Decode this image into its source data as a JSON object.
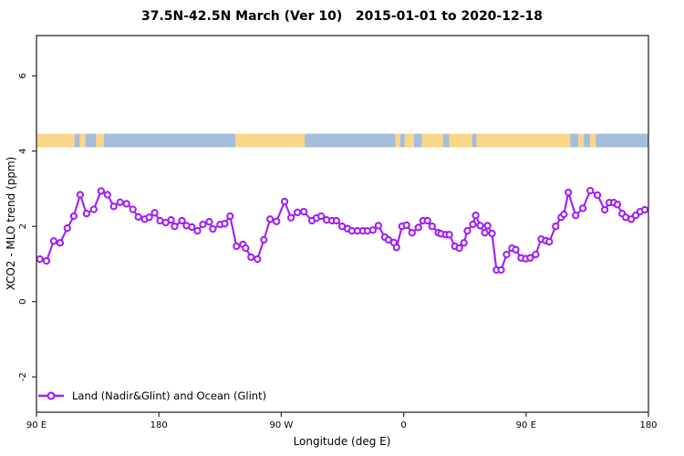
{
  "title": "37.5N-42.5N March (Ver 10)   2015-01-01 to 2020-12-18",
  "colors": {
    "line": "#A020F0",
    "marker_fill": "#ffffff",
    "land_band": "#FBD687",
    "ocean_band": "#A4BDDB",
    "axis": "#2b2b2b",
    "text": "#000000"
  },
  "legend": {
    "label": "Land (Nadir&Glint) and Ocean (Glint)"
  },
  "chart_data": {
    "type": "line",
    "title": "37.5N-42.5N March (Ver 10)   2015-01-01 to 2020-12-18",
    "xlabel": "Longitude (deg E)",
    "ylabel": "XCO2 - MLO trend (ppm)",
    "xlim": [
      90,
      540
    ],
    "ylim": [
      -2.94,
      7.07
    ],
    "grid": false,
    "legend_position": "bottom-left-inside",
    "x_ticks": [
      {
        "v": 90,
        "label": "90 E"
      },
      {
        "v": 180,
        "label": "180"
      },
      {
        "v": 270,
        "label": "90 W"
      },
      {
        "v": 360,
        "label": "0"
      },
      {
        "v": 450,
        "label": "90 E"
      },
      {
        "v": 540,
        "label": "180"
      }
    ],
    "y_ticks": [
      {
        "v": -2,
        "label": "-2"
      },
      {
        "v": 0,
        "label": "0"
      },
      {
        "v": 2,
        "label": "2"
      },
      {
        "v": 4,
        "label": "4"
      },
      {
        "v": 6,
        "label": "6"
      }
    ],
    "map_band": {
      "description": "land/ocean strip along longitude",
      "ppm_top": 4.46,
      "ppm_bottom": 4.1,
      "segments": [
        {
          "from": 90,
          "to": 118,
          "surface": "land"
        },
        {
          "from": 118,
          "to": 122,
          "surface": "ocean"
        },
        {
          "from": 122,
          "to": 126,
          "surface": "land"
        },
        {
          "from": 126,
          "to": 134,
          "surface": "ocean"
        },
        {
          "from": 134,
          "to": 139.5,
          "surface": "land"
        },
        {
          "from": 139.5,
          "to": 236.4,
          "surface": "ocean"
        },
        {
          "from": 236.4,
          "to": 287.2,
          "surface": "land"
        },
        {
          "from": 287.2,
          "to": 354.1,
          "surface": "ocean"
        },
        {
          "from": 354.1,
          "to": 357.4,
          "surface": "land"
        },
        {
          "from": 357.4,
          "to": 360.8,
          "surface": "ocean"
        },
        {
          "from": 360.8,
          "to": 367.5,
          "surface": "land"
        },
        {
          "from": 367.5,
          "to": 373.5,
          "surface": "ocean"
        },
        {
          "from": 373.5,
          "to": 388.9,
          "surface": "land"
        },
        {
          "from": 388.9,
          "to": 393.6,
          "surface": "ocean"
        },
        {
          "from": 393.6,
          "to": 410.3,
          "surface": "land"
        },
        {
          "from": 410.3,
          "to": 413.6,
          "surface": "ocean"
        },
        {
          "from": 413.6,
          "to": 482.5,
          "surface": "land"
        },
        {
          "from": 482.5,
          "to": 488.5,
          "surface": "ocean"
        },
        {
          "from": 488.5,
          "to": 492.5,
          "surface": "land"
        },
        {
          "from": 492.5,
          "to": 497.2,
          "surface": "ocean"
        },
        {
          "from": 497.2,
          "to": 501.2,
          "surface": "land"
        },
        {
          "from": 501.2,
          "to": 540,
          "surface": "ocean"
        }
      ]
    },
    "series": [
      {
        "name": "Land (Nadir&Glint) and Ocean (Glint)",
        "marker": "open-circle",
        "color": "#A020F0",
        "points": [
          [
            92.5,
            1.13
          ],
          [
            97.4,
            1.08
          ],
          [
            102.7,
            1.61
          ],
          [
            107.4,
            1.56
          ],
          [
            112.7,
            1.95
          ],
          [
            117.4,
            2.27
          ],
          [
            122.1,
            2.84
          ],
          [
            126.8,
            2.34
          ],
          [
            132.1,
            2.45
          ],
          [
            137.5,
            2.94
          ],
          [
            142.2,
            2.84
          ],
          [
            146.8,
            2.53
          ],
          [
            151.5,
            2.64
          ],
          [
            156.2,
            2.6
          ],
          [
            160.9,
            2.45
          ],
          [
            164.9,
            2.25
          ],
          [
            169.6,
            2.19
          ],
          [
            172.9,
            2.24
          ],
          [
            176.9,
            2.36
          ],
          [
            180.9,
            2.15
          ],
          [
            185.0,
            2.1
          ],
          [
            189.0,
            2.17
          ],
          [
            191.6,
            2.0
          ],
          [
            197.0,
            2.15
          ],
          [
            200.3,
            2.02
          ],
          [
            204.3,
            1.98
          ],
          [
            208.4,
            1.88
          ],
          [
            212.4,
            2.05
          ],
          [
            217.1,
            2.12
          ],
          [
            219.7,
            1.93
          ],
          [
            225.1,
            2.05
          ],
          [
            228.4,
            2.07
          ],
          [
            232.4,
            2.27
          ],
          [
            237.1,
            1.47
          ],
          [
            241.8,
            1.52
          ],
          [
            243.8,
            1.42
          ],
          [
            247.8,
            1.18
          ],
          [
            252.5,
            1.13
          ],
          [
            257.2,
            1.64
          ],
          [
            261.8,
            2.19
          ],
          [
            266.5,
            2.13
          ],
          [
            272.5,
            2.66
          ],
          [
            277.2,
            2.23
          ],
          [
            281.9,
            2.37
          ],
          [
            286.6,
            2.39
          ],
          [
            292.6,
            2.15
          ],
          [
            295.9,
            2.22
          ],
          [
            299.3,
            2.27
          ],
          [
            303.3,
            2.17
          ],
          [
            307.3,
            2.15
          ],
          [
            310.6,
            2.15
          ],
          [
            314.7,
            2.0
          ],
          [
            318.7,
            1.94
          ],
          [
            322.0,
            1.88
          ],
          [
            326.0,
            1.88
          ],
          [
            330.0,
            1.88
          ],
          [
            333.4,
            1.88
          ],
          [
            337.4,
            1.9
          ],
          [
            341.4,
            2.02
          ],
          [
            346.1,
            1.71
          ],
          [
            348.8,
            1.64
          ],
          [
            352.8,
            1.57
          ],
          [
            354.8,
            1.44
          ],
          [
            358.8,
            2.0
          ],
          [
            362.1,
            2.03
          ],
          [
            366.2,
            1.83
          ],
          [
            370.8,
            1.97
          ],
          [
            374.2,
            2.15
          ],
          [
            377.5,
            2.15
          ],
          [
            380.9,
            2.0
          ],
          [
            385.5,
            1.83
          ],
          [
            387.5,
            1.8
          ],
          [
            391.0,
            1.78
          ],
          [
            393.6,
            1.78
          ],
          [
            397.6,
            1.47
          ],
          [
            400.9,
            1.42
          ],
          [
            404.3,
            1.56
          ],
          [
            406.9,
            1.88
          ],
          [
            410.9,
            2.05
          ],
          [
            413.0,
            2.29
          ],
          [
            416.3,
            2.02
          ],
          [
            419.7,
            1.83
          ],
          [
            421.7,
            2.02
          ],
          [
            425.0,
            1.81
          ],
          [
            428.3,
            0.84
          ],
          [
            431.7,
            0.84
          ],
          [
            435.7,
            1.25
          ],
          [
            439.7,
            1.42
          ],
          [
            442.4,
            1.38
          ],
          [
            446.4,
            1.16
          ],
          [
            449.7,
            1.14
          ],
          [
            453.1,
            1.16
          ],
          [
            457.1,
            1.25
          ],
          [
            461.1,
            1.66
          ],
          [
            464.5,
            1.62
          ],
          [
            467.1,
            1.59
          ],
          [
            471.8,
            2.0
          ],
          [
            475.8,
            2.24
          ],
          [
            477.8,
            2.32
          ],
          [
            481.1,
            2.9
          ],
          [
            486.5,
            2.29
          ],
          [
            491.8,
            2.48
          ],
          [
            497.2,
            2.95
          ],
          [
            502.5,
            2.83
          ],
          [
            507.9,
            2.44
          ],
          [
            511.2,
            2.63
          ],
          [
            514.6,
            2.63
          ],
          [
            517.2,
            2.58
          ],
          [
            520.6,
            2.34
          ],
          [
            523.3,
            2.24
          ],
          [
            527.3,
            2.19
          ],
          [
            530.6,
            2.29
          ],
          [
            533.9,
            2.39
          ],
          [
            537.3,
            2.44
          ]
        ]
      }
    ]
  }
}
